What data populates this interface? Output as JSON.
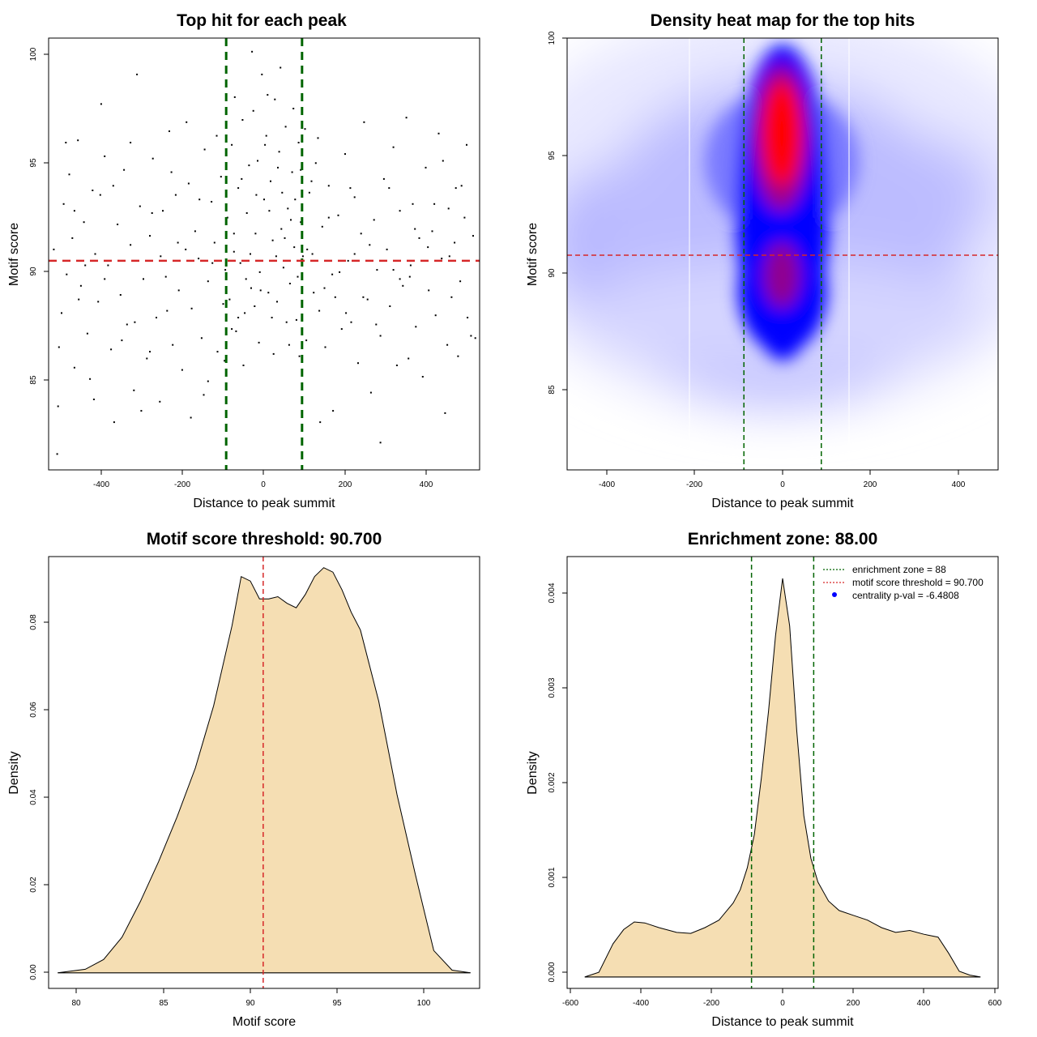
{
  "chart_data": [
    {
      "type": "scatter",
      "title": "Top hit for each peak",
      "xlabel": "Distance to peak summit",
      "ylabel": "Motif score",
      "xlim": [
        -500,
        500
      ],
      "ylim": [
        81.5,
        100.5
      ],
      "x_ticks": [
        "-400",
        "-200",
        "0",
        "200",
        "400"
      ],
      "y_ticks": [
        "85",
        "90",
        "95",
        "100"
      ],
      "threshold": 90.7,
      "zone": [
        -88,
        88
      ],
      "threshold_color": "#d62728",
      "zone_color": "#006400",
      "point_color": "#000000",
      "points": [
        [
          -480,
          82.2
        ],
        [
          -478,
          84.3
        ],
        [
          -470,
          88.4
        ],
        [
          -465,
          93.2
        ],
        [
          -458,
          90.1
        ],
        [
          -452,
          94.5
        ],
        [
          -445,
          91.7
        ],
        [
          -440,
          86.0
        ],
        [
          -432,
          96.0
        ],
        [
          -425,
          89.6
        ],
        [
          -418,
          92.4
        ],
        [
          -410,
          87.5
        ],
        [
          -404,
          85.5
        ],
        [
          -398,
          93.8
        ],
        [
          -392,
          91.0
        ],
        [
          -385,
          88.9
        ],
        [
          -378,
          97.6
        ],
        [
          -370,
          95.3
        ],
        [
          -362,
          90.5
        ],
        [
          -355,
          86.8
        ],
        [
          -348,
          83.6
        ],
        [
          -340,
          92.3
        ],
        [
          -333,
          89.2
        ],
        [
          -325,
          94.7
        ],
        [
          -318,
          87.9
        ],
        [
          -310,
          91.4
        ],
        [
          -302,
          85.0
        ],
        [
          -295,
          98.9
        ],
        [
          -288,
          93.1
        ],
        [
          -280,
          89.9
        ],
        [
          -272,
          86.4
        ],
        [
          -265,
          91.8
        ],
        [
          -258,
          95.2
        ],
        [
          -250,
          88.2
        ],
        [
          -242,
          84.5
        ],
        [
          -235,
          92.9
        ],
        [
          -228,
          90.0
        ],
        [
          -220,
          96.4
        ],
        [
          -212,
          87.0
        ],
        [
          -205,
          93.6
        ],
        [
          -198,
          89.4
        ],
        [
          -190,
          85.9
        ],
        [
          -182,
          91.2
        ],
        [
          -175,
          94.1
        ],
        [
          -168,
          88.6
        ],
        [
          -160,
          92.0
        ],
        [
          -152,
          90.8
        ],
        [
          -145,
          87.3
        ],
        [
          -138,
          95.6
        ],
        [
          -130,
          89.8
        ],
        [
          -122,
          93.3
        ],
        [
          -115,
          91.5
        ],
        [
          -108,
          86.7
        ],
        [
          -100,
          94.4
        ],
        [
          -95,
          88.8
        ],
        [
          -90,
          90.3
        ],
        [
          -85,
          92.6
        ],
        [
          -80,
          89.0
        ],
        [
          -75,
          95.8
        ],
        [
          -70,
          91.1
        ],
        [
          -65,
          87.6
        ],
        [
          -60,
          93.9
        ],
        [
          -55,
          90.6
        ],
        [
          -50,
          96.9
        ],
        [
          -45,
          88.4
        ],
        [
          -40,
          92.8
        ],
        [
          -35,
          94.9
        ],
        [
          -30,
          89.5
        ],
        [
          -25,
          97.3
        ],
        [
          -20,
          91.9
        ],
        [
          -15,
          95.1
        ],
        [
          -10,
          90.2
        ],
        [
          -5,
          98.9
        ],
        [
          0,
          93.4
        ],
        [
          5,
          96.2
        ],
        [
          10,
          89.3
        ],
        [
          15,
          94.2
        ],
        [
          20,
          91.6
        ],
        [
          25,
          97.8
        ],
        [
          30,
          88.9
        ],
        [
          35,
          95.5
        ],
        [
          40,
          92.1
        ],
        [
          45,
          90.4
        ],
        [
          50,
          96.6
        ],
        [
          55,
          93.0
        ],
        [
          60,
          89.7
        ],
        [
          65,
          94.6
        ],
        [
          70,
          91.3
        ],
        [
          75,
          88.1
        ],
        [
          80,
          95.9
        ],
        [
          85,
          92.4
        ],
        [
          90,
          90.9
        ],
        [
          98,
          87.2
        ],
        [
          105,
          93.7
        ],
        [
          112,
          91.0
        ],
        [
          120,
          95.0
        ],
        [
          128,
          88.5
        ],
        [
          135,
          92.2
        ],
        [
          142,
          86.9
        ],
        [
          150,
          94.0
        ],
        [
          158,
          90.1
        ],
        [
          165,
          89.1
        ],
        [
          172,
          92.7
        ],
        [
          180,
          87.7
        ],
        [
          188,
          95.4
        ],
        [
          195,
          90.7
        ],
        [
          202,
          88.0
        ],
        [
          210,
          93.5
        ],
        [
          218,
          86.2
        ],
        [
          225,
          91.9
        ],
        [
          232,
          96.8
        ],
        [
          240,
          89.0
        ],
        [
          248,
          84.9
        ],
        [
          255,
          92.5
        ],
        [
          262,
          90.3
        ],
        [
          270,
          87.4
        ],
        [
          278,
          94.3
        ],
        [
          285,
          91.2
        ],
        [
          292,
          88.7
        ],
        [
          300,
          95.7
        ],
        [
          308,
          86.1
        ],
        [
          315,
          92.9
        ],
        [
          322,
          89.6
        ],
        [
          330,
          97.0
        ],
        [
          338,
          90.0
        ],
        [
          345,
          93.2
        ],
        [
          352,
          87.8
        ],
        [
          360,
          91.7
        ],
        [
          368,
          85.6
        ],
        [
          375,
          94.8
        ],
        [
          382,
          89.4
        ],
        [
          390,
          92.0
        ],
        [
          398,
          88.3
        ],
        [
          405,
          96.3
        ],
        [
          412,
          90.8
        ],
        [
          420,
          84.0
        ],
        [
          428,
          93.0
        ],
        [
          435,
          89.1
        ],
        [
          442,
          91.5
        ],
        [
          450,
          86.5
        ],
        [
          458,
          94.0
        ],
        [
          465,
          92.6
        ],
        [
          472,
          88.2
        ],
        [
          480,
          87.4
        ],
        [
          485,
          91.8
        ],
        [
          -488,
          91.2
        ],
        [
          -476,
          86.9
        ],
        [
          -430,
          89.0
        ],
        [
          -350,
          94.0
        ],
        [
          -300,
          88.0
        ],
        [
          -260,
          92.8
        ],
        [
          -180,
          96.8
        ],
        [
          -140,
          84.8
        ],
        [
          -120,
          90.6
        ],
        [
          -92,
          86.3
        ],
        [
          -68,
          97.9
        ],
        [
          -48,
          86.1
        ],
        [
          -28,
          99.9
        ],
        [
          -12,
          87.1
        ],
        [
          8,
          98.0
        ],
        [
          22,
          86.6
        ],
        [
          38,
          99.2
        ],
        [
          52,
          88.0
        ],
        [
          68,
          97.4
        ],
        [
          82,
          86.5
        ],
        [
          100,
          91.2
        ],
        [
          125,
          96.1
        ],
        [
          160,
          84.1
        ],
        [
          200,
          93.9
        ],
        [
          245,
          91.4
        ],
        [
          290,
          93.9
        ],
        [
          335,
          86.4
        ],
        [
          380,
          91.3
        ],
        [
          425,
          87.0
        ],
        [
          470,
          95.8
        ],
        [
          -460,
          95.9
        ],
        [
          -395,
          84.6
        ],
        [
          -285,
          84.1
        ],
        [
          -225,
          88.5
        ],
        [
          -170,
          83.8
        ],
        [
          130,
          83.6
        ],
        [
          270,
          82.7
        ],
        [
          315,
          89.9
        ],
        [
          -330,
          87.2
        ],
        [
          -240,
          90.9
        ],
        [
          -110,
          96.2
        ],
        [
          -70,
          91.9
        ],
        [
          -42,
          89.9
        ],
        [
          -18,
          93.6
        ],
        [
          12,
          92.9
        ],
        [
          28,
          90.9
        ],
        [
          48,
          91.7
        ],
        [
          72,
          93.4
        ],
        [
          95,
          96.5
        ],
        [
          140,
          89.5
        ],
        [
          190,
          88.4
        ],
        [
          350,
          92.1
        ],
        [
          415,
          95.1
        ],
        [
          445,
          93.9
        ],
        [
          -415,
          90.5
        ],
        [
          -370,
          89.9
        ],
        [
          -310,
          95.9
        ],
        [
          -200,
          91.5
        ],
        [
          -150,
          93.4
        ],
        [
          -60,
          88.2
        ],
        [
          -32,
          91.0
        ],
        [
          -8,
          89.4
        ],
        [
          18,
          88.2
        ],
        [
          42,
          93.7
        ],
        [
          62,
          92.5
        ],
        [
          85,
          94.7
        ],
        [
          115,
          89.3
        ],
        [
          175,
          90.2
        ],
        [
          230,
          89.1
        ],
        [
          300,
          90.3
        ],
        [
          395,
          93.2
        ],
        [
          455,
          89.8
        ],
        [
          -440,
          92.9
        ],
        [
          -380,
          93.6
        ],
        [
          -265,
          86.7
        ],
        [
          -215,
          94.6
        ],
        [
          -130,
          85.4
        ],
        [
          -75,
          87.7
        ],
        [
          -52,
          94.3
        ],
        [
          -22,
          88.7
        ],
        [
          2,
          95.8
        ],
        [
          32,
          94.8
        ],
        [
          58,
          87.0
        ],
        [
          78,
          90.0
        ],
        [
          110,
          94.2
        ],
        [
          150,
          92.6
        ],
        [
          210,
          91.0
        ],
        [
          260,
          87.9
        ],
        [
          340,
          90.5
        ],
        [
          430,
          90.9
        ],
        [
          490,
          87.3
        ]
      ]
    },
    {
      "type": "heatmap",
      "title": "Density heat map for the top hits",
      "xlabel": "Distance to peak summit",
      "ylabel": "Motif score",
      "xlim": [
        -490,
        490
      ],
      "ylim": [
        81.5,
        100
      ],
      "x_ticks": [
        "-400",
        "-200",
        "0",
        "200",
        "400"
      ],
      "y_ticks": [
        "85",
        "90",
        "95",
        "100"
      ],
      "threshold": 90.7,
      "zone": [
        -88,
        88
      ],
      "colors": [
        "#ffffff",
        "#0000ff",
        "#ff0000"
      ],
      "density_peak": {
        "x": 0,
        "y": 95.5
      },
      "secondary_peak": {
        "x": 0,
        "y": 89.5
      }
    },
    {
      "type": "area",
      "title": "Motif score threshold: 90.700",
      "xlabel": "Motif score",
      "ylabel": "Density",
      "xlim": [
        79,
        102.5
      ],
      "ylim": [
        -0.0035,
        0.0935
      ],
      "x_ticks": [
        "80",
        "85",
        "90",
        "95",
        "100"
      ],
      "y_ticks": [
        "0.00",
        "0.02",
        "0.04",
        "0.06",
        "0.08"
      ],
      "threshold": 90.7,
      "fill": "#f5deb3",
      "x": [
        79.5,
        81,
        82,
        83,
        84,
        85,
        86,
        87,
        88,
        89,
        89.5,
        90,
        90.5,
        91,
        91.5,
        92,
        92.5,
        93,
        93.5,
        94,
        94.5,
        95,
        95.5,
        96,
        97,
        98,
        99,
        100,
        101,
        102
      ],
      "y": [
        0.0,
        0.0008,
        0.003,
        0.008,
        0.016,
        0.025,
        0.035,
        0.046,
        0.06,
        0.078,
        0.089,
        0.088,
        0.084,
        0.084,
        0.0845,
        0.083,
        0.082,
        0.085,
        0.089,
        0.091,
        0.09,
        0.086,
        0.081,
        0.077,
        0.061,
        0.04,
        0.022,
        0.005,
        0.0006,
        0.0
      ]
    },
    {
      "type": "area",
      "title": "Enrichment zone: 88.00",
      "xlabel": "Distance to peak summit",
      "ylabel": "Density",
      "xlim": [
        -610,
        610
      ],
      "ylim": [
        -0.00012,
        0.00443
      ],
      "x_ticks": [
        "-600",
        "-400",
        "-200",
        "0",
        "200",
        "400",
        "600"
      ],
      "y_ticks": [
        "0.000",
        "0.001",
        "0.002",
        "0.003",
        "0.004"
      ],
      "zone": [
        -88,
        88
      ],
      "fill": "#f5deb3",
      "x": [
        -560,
        -520,
        -480,
        -450,
        -420,
        -390,
        -350,
        -300,
        -260,
        -220,
        -180,
        -140,
        -120,
        -100,
        -80,
        -60,
        -40,
        -20,
        0,
        20,
        40,
        60,
        80,
        100,
        130,
        160,
        200,
        240,
        280,
        320,
        360,
        400,
        440,
        470,
        500,
        530,
        560
      ],
      "y": [
        0.0,
        5e-05,
        0.00035,
        0.0005,
        0.00058,
        0.00057,
        0.00052,
        0.00047,
        0.00046,
        0.00052,
        0.0006,
        0.00078,
        0.00092,
        0.00115,
        0.0015,
        0.0021,
        0.0028,
        0.0036,
        0.0042,
        0.0037,
        0.0026,
        0.0017,
        0.00125,
        0.001,
        0.0008,
        0.0007,
        0.00065,
        0.0006,
        0.00052,
        0.00047,
        0.00049,
        0.00045,
        0.00042,
        0.00025,
        6e-05,
        2e-05,
        0.0
      ],
      "legend": [
        "enrichment zone = 88",
        "motif score threshold = 90.700",
        "centrality p-val = -6.4808"
      ],
      "legend_position": "top-right"
    }
  ]
}
